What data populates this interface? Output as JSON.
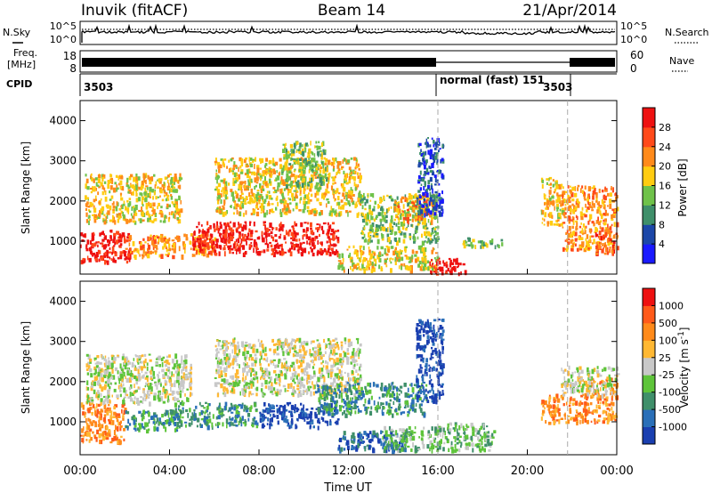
{
  "header": {
    "station": "Inuvik (fitACF)",
    "beam": "Beam 14",
    "date": "21/Apr/2014"
  },
  "status_panels": {
    "nsky_label": "N.Sky",
    "nsearch_label": "N.Search",
    "noise_ticks": [
      "10^5",
      "10^0"
    ],
    "freq_label_1": "Freq.",
    "freq_label_2": "[MHz]",
    "freq_ticks": [
      "18",
      "8"
    ],
    "nave_label": "Nave",
    "nave_ticks": [
      "60",
      "0"
    ],
    "cpid_label": "CPID",
    "cpid_segments": [
      {
        "label": "3503",
        "start_hour": 0
      },
      {
        "label": "normal (fast) 151",
        "start_hour": 16.0
      },
      {
        "label": "3503",
        "start_hour": 21.8
      }
    ]
  },
  "chart_data": [
    {
      "type": "heatmap",
      "title": "",
      "xlabel": "Time UT",
      "ylabel": "Slant Range [km]",
      "xlim": [
        0,
        24
      ],
      "ylim": [
        180,
        4500
      ],
      "x_ticks": [
        "00:00",
        "04:00",
        "08:00",
        "12:00",
        "16:00",
        "20:00",
        "00:00"
      ],
      "y_ticks": [
        1000,
        2000,
        3000,
        4000
      ],
      "colorbar": {
        "label": "Power [dB]",
        "ticks": [
          "4",
          "8",
          "12",
          "16",
          "20",
          "24",
          "28"
        ],
        "colors": [
          "#1a1aff",
          "#1c47a8",
          "#3f8f6a",
          "#6fc24a",
          "#ffcc11",
          "#ff8a1a",
          "#ff4a1a",
          "#ee1111"
        ]
      },
      "regions": [
        {
          "t0": 0.0,
          "t1": 2.2,
          "r0": 500,
          "r1": 1300,
          "level": 7
        },
        {
          "t0": 0.2,
          "t1": 4.5,
          "r0": 1500,
          "r1": 2700,
          "level": 4
        },
        {
          "t0": 2.0,
          "t1": 6.0,
          "r0": 650,
          "r1": 1200,
          "level": 5
        },
        {
          "t0": 5.0,
          "t1": 11.5,
          "r0": 700,
          "r1": 1500,
          "level": 7
        },
        {
          "t0": 6.0,
          "t1": 12.5,
          "r0": 1700,
          "r1": 3100,
          "level": 4
        },
        {
          "t0": 9.0,
          "t1": 11.0,
          "r0": 2400,
          "r1": 3500,
          "level": 3
        },
        {
          "t0": 11.5,
          "t1": 16.0,
          "r0": 300,
          "r1": 900,
          "level": 4
        },
        {
          "t0": 12.5,
          "t1": 16.0,
          "r0": 1000,
          "r1": 2200,
          "level": 3
        },
        {
          "t0": 14.0,
          "t1": 15.8,
          "r0": 1500,
          "r1": 2200,
          "level": 5
        },
        {
          "t0": 15.0,
          "t1": 16.2,
          "r0": 1700,
          "r1": 3600,
          "level": 1
        },
        {
          "t0": 15.6,
          "t1": 17.2,
          "r0": 200,
          "r1": 600,
          "level": 7
        },
        {
          "t0": 17.0,
          "t1": 19.0,
          "r0": 900,
          "r1": 1100,
          "level": 3
        },
        {
          "t0": 20.6,
          "t1": 21.6,
          "r0": 1400,
          "r1": 2600,
          "level": 4
        },
        {
          "t0": 21.5,
          "t1": 24.0,
          "r0": 800,
          "r1": 2400,
          "level": 5
        },
        {
          "t0": 23.0,
          "t1": 24.0,
          "r0": 700,
          "r1": 1300,
          "level": 6
        }
      ]
    },
    {
      "type": "heatmap",
      "title": "",
      "xlabel": "Time UT",
      "ylabel": "Slant Range [km]",
      "xlim": [
        0,
        24
      ],
      "ylim": [
        180,
        4500
      ],
      "x_ticks": [
        "00:00",
        "04:00",
        "08:00",
        "12:00",
        "16:00",
        "20:00",
        "00:00"
      ],
      "y_ticks": [
        1000,
        2000,
        3000,
        4000
      ],
      "colorbar": {
        "label": "Velocity [m s^-1]",
        "ticks": [
          "1000",
          "500",
          "100",
          "25",
          "-25",
          "-100",
          "-500",
          "-1000"
        ],
        "colors": [
          "#1a3fb0",
          "#2a6fb8",
          "#3f8f6a",
          "#5ec43a",
          "#c8c8c8",
          "#ffb833",
          "#ff8a1a",
          "#ff5a1a",
          "#ee1111"
        ]
      },
      "regions": [
        {
          "t0": 0.0,
          "t1": 2.0,
          "r0": 500,
          "r1": 1500,
          "level": 6
        },
        {
          "t0": 0.2,
          "t1": 5.0,
          "r0": 1500,
          "r1": 2700,
          "level": 4
        },
        {
          "t0": 2.0,
          "t1": 4.5,
          "r0": 800,
          "r1": 1300,
          "level": 2
        },
        {
          "t0": 4.0,
          "t1": 8.0,
          "r0": 900,
          "r1": 1500,
          "level": 2
        },
        {
          "t0": 6.0,
          "t1": 12.5,
          "r0": 1700,
          "r1": 3100,
          "level": 4
        },
        {
          "t0": 8.0,
          "t1": 11.5,
          "r0": 900,
          "r1": 1500,
          "level": 0
        },
        {
          "t0": 10.5,
          "t1": 15.5,
          "r0": 1200,
          "r1": 2000,
          "level": 2
        },
        {
          "t0": 11.5,
          "t1": 14.5,
          "r0": 300,
          "r1": 800,
          "level": 1
        },
        {
          "t0": 13.5,
          "t1": 16.0,
          "r0": 300,
          "r1": 900,
          "level": 3
        },
        {
          "t0": 15.0,
          "t1": 16.2,
          "r0": 1500,
          "r1": 3600,
          "level": 0
        },
        {
          "t0": 16.0,
          "t1": 18.5,
          "r0": 300,
          "r1": 1000,
          "level": 3
        },
        {
          "t0": 20.6,
          "t1": 22.5,
          "r0": 1000,
          "r1": 1700,
          "level": 6
        },
        {
          "t0": 22.5,
          "t1": 24.0,
          "r0": 1000,
          "r1": 2100,
          "level": 6
        },
        {
          "t0": 21.5,
          "t1": 24.0,
          "r0": 1700,
          "r1": 2400,
          "level": 4
        }
      ]
    }
  ]
}
